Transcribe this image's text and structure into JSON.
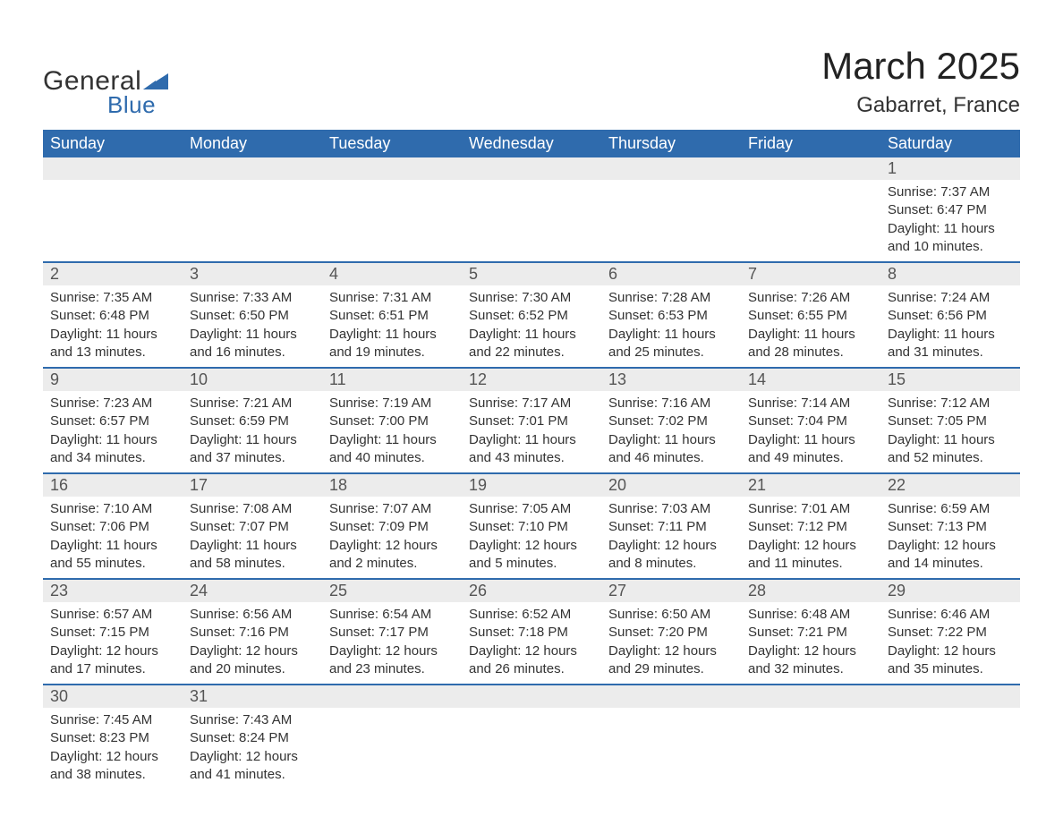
{
  "logo": {
    "text1": "General",
    "text2": "Blue",
    "tri_color": "#2f6bad"
  },
  "title": "March 2025",
  "location": "Gabarret, France",
  "colors": {
    "header_bg": "#2f6bad",
    "header_text": "#ffffff",
    "daynum_bg": "#ececec",
    "row_border": "#2f6bad",
    "text": "#333333"
  },
  "weekdays": [
    "Sunday",
    "Monday",
    "Tuesday",
    "Wednesday",
    "Thursday",
    "Friday",
    "Saturday"
  ],
  "weeks": [
    [
      null,
      null,
      null,
      null,
      null,
      null,
      {
        "n": "1",
        "sr": "Sunrise: 7:37 AM",
        "ss": "Sunset: 6:47 PM",
        "dl": "Daylight: 11 hours and 10 minutes."
      }
    ],
    [
      {
        "n": "2",
        "sr": "Sunrise: 7:35 AM",
        "ss": "Sunset: 6:48 PM",
        "dl": "Daylight: 11 hours and 13 minutes."
      },
      {
        "n": "3",
        "sr": "Sunrise: 7:33 AM",
        "ss": "Sunset: 6:50 PM",
        "dl": "Daylight: 11 hours and 16 minutes."
      },
      {
        "n": "4",
        "sr": "Sunrise: 7:31 AM",
        "ss": "Sunset: 6:51 PM",
        "dl": "Daylight: 11 hours and 19 minutes."
      },
      {
        "n": "5",
        "sr": "Sunrise: 7:30 AM",
        "ss": "Sunset: 6:52 PM",
        "dl": "Daylight: 11 hours and 22 minutes."
      },
      {
        "n": "6",
        "sr": "Sunrise: 7:28 AM",
        "ss": "Sunset: 6:53 PM",
        "dl": "Daylight: 11 hours and 25 minutes."
      },
      {
        "n": "7",
        "sr": "Sunrise: 7:26 AM",
        "ss": "Sunset: 6:55 PM",
        "dl": "Daylight: 11 hours and 28 minutes."
      },
      {
        "n": "8",
        "sr": "Sunrise: 7:24 AM",
        "ss": "Sunset: 6:56 PM",
        "dl": "Daylight: 11 hours and 31 minutes."
      }
    ],
    [
      {
        "n": "9",
        "sr": "Sunrise: 7:23 AM",
        "ss": "Sunset: 6:57 PM",
        "dl": "Daylight: 11 hours and 34 minutes."
      },
      {
        "n": "10",
        "sr": "Sunrise: 7:21 AM",
        "ss": "Sunset: 6:59 PM",
        "dl": "Daylight: 11 hours and 37 minutes."
      },
      {
        "n": "11",
        "sr": "Sunrise: 7:19 AM",
        "ss": "Sunset: 7:00 PM",
        "dl": "Daylight: 11 hours and 40 minutes."
      },
      {
        "n": "12",
        "sr": "Sunrise: 7:17 AM",
        "ss": "Sunset: 7:01 PM",
        "dl": "Daylight: 11 hours and 43 minutes."
      },
      {
        "n": "13",
        "sr": "Sunrise: 7:16 AM",
        "ss": "Sunset: 7:02 PM",
        "dl": "Daylight: 11 hours and 46 minutes."
      },
      {
        "n": "14",
        "sr": "Sunrise: 7:14 AM",
        "ss": "Sunset: 7:04 PM",
        "dl": "Daylight: 11 hours and 49 minutes."
      },
      {
        "n": "15",
        "sr": "Sunrise: 7:12 AM",
        "ss": "Sunset: 7:05 PM",
        "dl": "Daylight: 11 hours and 52 minutes."
      }
    ],
    [
      {
        "n": "16",
        "sr": "Sunrise: 7:10 AM",
        "ss": "Sunset: 7:06 PM",
        "dl": "Daylight: 11 hours and 55 minutes."
      },
      {
        "n": "17",
        "sr": "Sunrise: 7:08 AM",
        "ss": "Sunset: 7:07 PM",
        "dl": "Daylight: 11 hours and 58 minutes."
      },
      {
        "n": "18",
        "sr": "Sunrise: 7:07 AM",
        "ss": "Sunset: 7:09 PM",
        "dl": "Daylight: 12 hours and 2 minutes."
      },
      {
        "n": "19",
        "sr": "Sunrise: 7:05 AM",
        "ss": "Sunset: 7:10 PM",
        "dl": "Daylight: 12 hours and 5 minutes."
      },
      {
        "n": "20",
        "sr": "Sunrise: 7:03 AM",
        "ss": "Sunset: 7:11 PM",
        "dl": "Daylight: 12 hours and 8 minutes."
      },
      {
        "n": "21",
        "sr": "Sunrise: 7:01 AM",
        "ss": "Sunset: 7:12 PM",
        "dl": "Daylight: 12 hours and 11 minutes."
      },
      {
        "n": "22",
        "sr": "Sunrise: 6:59 AM",
        "ss": "Sunset: 7:13 PM",
        "dl": "Daylight: 12 hours and 14 minutes."
      }
    ],
    [
      {
        "n": "23",
        "sr": "Sunrise: 6:57 AM",
        "ss": "Sunset: 7:15 PM",
        "dl": "Daylight: 12 hours and 17 minutes."
      },
      {
        "n": "24",
        "sr": "Sunrise: 6:56 AM",
        "ss": "Sunset: 7:16 PM",
        "dl": "Daylight: 12 hours and 20 minutes."
      },
      {
        "n": "25",
        "sr": "Sunrise: 6:54 AM",
        "ss": "Sunset: 7:17 PM",
        "dl": "Daylight: 12 hours and 23 minutes."
      },
      {
        "n": "26",
        "sr": "Sunrise: 6:52 AM",
        "ss": "Sunset: 7:18 PM",
        "dl": "Daylight: 12 hours and 26 minutes."
      },
      {
        "n": "27",
        "sr": "Sunrise: 6:50 AM",
        "ss": "Sunset: 7:20 PM",
        "dl": "Daylight: 12 hours and 29 minutes."
      },
      {
        "n": "28",
        "sr": "Sunrise: 6:48 AM",
        "ss": "Sunset: 7:21 PM",
        "dl": "Daylight: 12 hours and 32 minutes."
      },
      {
        "n": "29",
        "sr": "Sunrise: 6:46 AM",
        "ss": "Sunset: 7:22 PM",
        "dl": "Daylight: 12 hours and 35 minutes."
      }
    ],
    [
      {
        "n": "30",
        "sr": "Sunrise: 7:45 AM",
        "ss": "Sunset: 8:23 PM",
        "dl": "Daylight: 12 hours and 38 minutes."
      },
      {
        "n": "31",
        "sr": "Sunrise: 7:43 AM",
        "ss": "Sunset: 8:24 PM",
        "dl": "Daylight: 12 hours and 41 minutes."
      },
      null,
      null,
      null,
      null,
      null
    ]
  ]
}
